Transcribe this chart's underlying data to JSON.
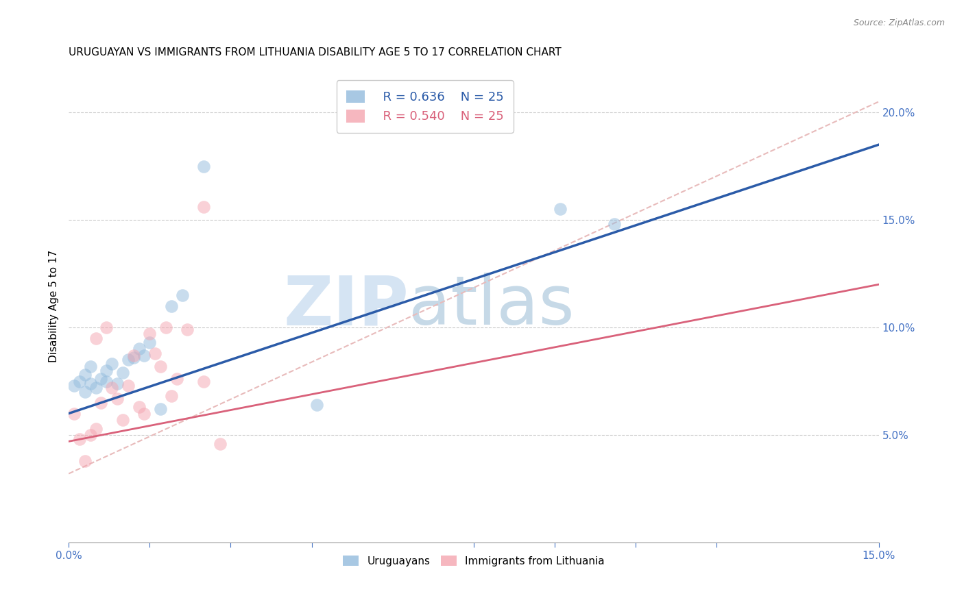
{
  "title": "URUGUAYAN VS IMMIGRANTS FROM LITHUANIA DISABILITY AGE 5 TO 17 CORRELATION CHART",
  "source": "Source: ZipAtlas.com",
  "ylabel": "Disability Age 5 to 17",
  "xlim": [
    0,
    0.15
  ],
  "ylim": [
    0,
    0.22
  ],
  "xtick_positions": [
    0.0,
    0.015,
    0.03,
    0.045,
    0.075,
    0.09,
    0.105,
    0.12,
    0.15
  ],
  "xtick_labels_show": {
    "0.0": "0.0%",
    "0.15": "15.0%"
  },
  "yticks_right": [
    0.05,
    0.1,
    0.15,
    0.2
  ],
  "ytick_right_labels": [
    "5.0%",
    "10.0%",
    "15.0%",
    "20.0%"
  ],
  "blue_scatter_x": [
    0.001,
    0.002,
    0.003,
    0.003,
    0.004,
    0.004,
    0.005,
    0.006,
    0.007,
    0.007,
    0.008,
    0.009,
    0.01,
    0.011,
    0.012,
    0.013,
    0.014,
    0.015,
    0.017,
    0.019,
    0.021,
    0.025,
    0.046,
    0.091,
    0.101
  ],
  "blue_scatter_y": [
    0.073,
    0.075,
    0.07,
    0.078,
    0.074,
    0.082,
    0.072,
    0.076,
    0.08,
    0.075,
    0.083,
    0.074,
    0.079,
    0.085,
    0.086,
    0.09,
    0.087,
    0.093,
    0.062,
    0.11,
    0.115,
    0.175,
    0.064,
    0.155,
    0.148
  ],
  "pink_scatter_x": [
    0.001,
    0.002,
    0.003,
    0.004,
    0.005,
    0.005,
    0.006,
    0.007,
    0.008,
    0.009,
    0.01,
    0.011,
    0.012,
    0.013,
    0.014,
    0.015,
    0.016,
    0.017,
    0.018,
    0.019,
    0.02,
    0.022,
    0.025,
    0.028,
    0.025
  ],
  "pink_scatter_y": [
    0.06,
    0.048,
    0.038,
    0.05,
    0.053,
    0.095,
    0.065,
    0.1,
    0.072,
    0.067,
    0.057,
    0.073,
    0.087,
    0.063,
    0.06,
    0.097,
    0.088,
    0.082,
    0.1,
    0.068,
    0.076,
    0.099,
    0.075,
    0.046,
    0.156
  ],
  "blue_line_x": [
    0.0,
    0.15
  ],
  "blue_line_y": [
    0.06,
    0.185
  ],
  "pink_line_x": [
    0.0,
    0.15
  ],
  "pink_line_y": [
    0.047,
    0.12
  ],
  "diag_line_x": [
    0.0,
    0.15
  ],
  "diag_line_y": [
    0.032,
    0.205
  ],
  "blue_color": "#92BBDD",
  "pink_color": "#F4A5B0",
  "blue_line_color": "#2B5BA8",
  "pink_line_color": "#D9617A",
  "diag_line_color": "#E8BBBB",
  "legend_r_blue": "R = 0.636",
  "legend_n_blue": "N = 25",
  "legend_r_pink": "R = 0.540",
  "legend_n_pink": "N = 25",
  "watermark_zip": "ZIP",
  "watermark_atlas": "atlas",
  "scatter_size": 180,
  "scatter_alpha": 0.5,
  "title_fontsize": 11,
  "axis_label_color": "#4472C4",
  "right_axis_color": "#4472C4"
}
